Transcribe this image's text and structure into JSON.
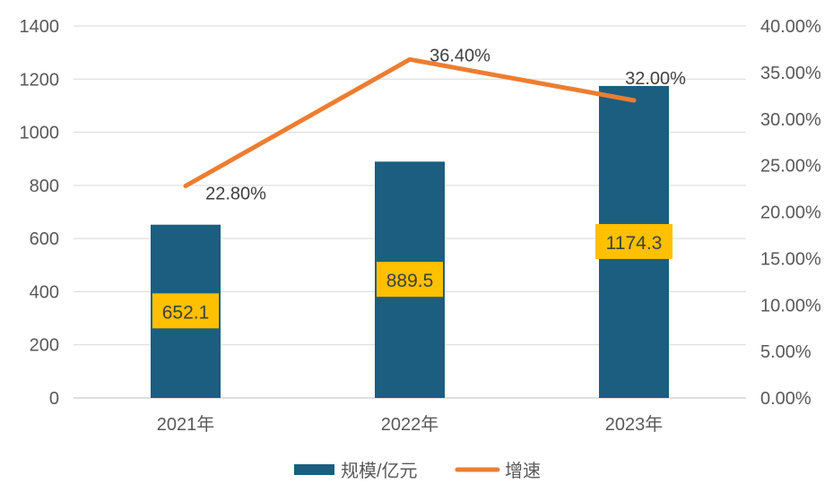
{
  "chart_data": {
    "type": "bar+line",
    "categories": [
      "2021年",
      "2022年",
      "2023年"
    ],
    "series": [
      {
        "name": "规模/亿元",
        "type": "bar",
        "axis": "left",
        "values": [
          652.1,
          889.5,
          1174.3
        ],
        "labels": [
          "652.1",
          "889.5",
          "1174.3"
        ],
        "color": "#1B5E80"
      },
      {
        "name": "增速",
        "type": "line",
        "axis": "right",
        "values": [
          22.8,
          36.4,
          32.0
        ],
        "labels": [
          "22.80%",
          "36.40%",
          "32.00%"
        ],
        "color": "#ED7D31"
      }
    ],
    "left_axis": {
      "ylim": [
        0,
        1400
      ],
      "ticks": [
        "0",
        "200",
        "400",
        "600",
        "800",
        "1000",
        "1200",
        "1400"
      ]
    },
    "right_axis": {
      "ylim": [
        0,
        40
      ],
      "ticks": [
        "0.00%",
        "5.00%",
        "10.00%",
        "15.00%",
        "20.00%",
        "25.00%",
        "30.00%",
        "35.00%",
        "40.00%"
      ]
    },
    "grid": true,
    "legend": "bottom",
    "label_box_color": "#FFC000"
  }
}
